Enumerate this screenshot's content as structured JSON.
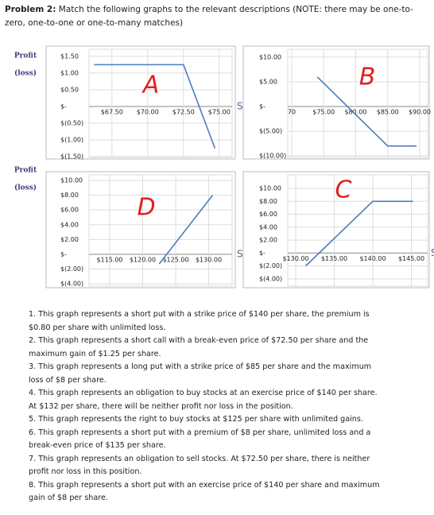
{
  "heading": {
    "label": "Problem 2:",
    "text": "Match the following graphs to the relevant descriptions (NOTE: there may be one-to-zero, one-to-one or one-to-many matches)"
  },
  "charts": [
    {
      "letter": "A",
      "y_label": [
        "Profit",
        "(loss)"
      ],
      "x_label": "S",
      "xlim": [
        65.9,
        75.9
      ],
      "ylim": [
        -1.52,
        1.71
      ],
      "xticks": [
        {
          "value": 67.5,
          "label": "$67.50"
        },
        {
          "value": 70,
          "label": "$70.00"
        },
        {
          "value": 72.5,
          "label": "$72.50"
        },
        {
          "value": 75,
          "label": "$75.00"
        }
      ],
      "yticks": [
        {
          "value": 1.5,
          "label": "$1.50"
        },
        {
          "value": 1,
          "label": "$1.00"
        },
        {
          "value": 0.5,
          "label": "$0.50"
        },
        {
          "value": 0,
          "label": "$-"
        },
        {
          "value": -0.5,
          "label": "$(0.50)"
        },
        {
          "value": -1,
          "label": "$(1.00)"
        },
        {
          "value": -1.5,
          "label": "$(1.50)"
        }
      ],
      "line": {
        "x": [
          66.25,
          72.5,
          74.7
        ],
        "y": [
          1.25,
          1.25,
          -1.25
        ]
      }
    },
    {
      "letter": "B",
      "xlim": [
        69.38,
        91.24
      ],
      "ylim": [
        -10.3,
        11.6
      ],
      "xticks": [
        70,
        {
          "value": 75,
          "label": "$75.00"
        },
        {
          "value": 80,
          "label": "$80.00"
        },
        {
          "value": 85,
          "label": "$85.00"
        },
        {
          "value": 90,
          "label": "$90.00"
        }
      ],
      "yticks": [
        {
          "value": 10,
          "label": "$10.00"
        },
        {
          "value": 5,
          "label": "$5.00"
        },
        {
          "value": 0,
          "label": "$-"
        },
        {
          "value": -5,
          "label": "$(5.00)"
        },
        {
          "value": -10,
          "label": "$(10.00)"
        }
      ],
      "line": {
        "x": [
          74,
          85,
          89.5
        ],
        "y": [
          6,
          -8,
          -8
        ]
      }
    },
    {
      "letter": "D",
      "y_label": [
        "Profit",
        "(loss)"
      ],
      "x_label": "S",
      "xlim": [
        111.87,
        133.55
      ],
      "ylim": [
        -4.3,
        10.75
      ],
      "xticks": [
        {
          "value": 115,
          "label": "$115.00"
        },
        {
          "value": 120,
          "label": "$120.00"
        },
        {
          "value": 125,
          "label": "$125.00"
        },
        {
          "value": 130,
          "label": "$130.00"
        }
      ],
      "yticks": [
        {
          "value": 10,
          "label": "$10.00"
        },
        {
          "value": 8,
          "label": "$8.00"
        },
        {
          "value": 6,
          "label": "$6.00"
        },
        {
          "value": 4,
          "label": "$4.00"
        },
        {
          "value": 2,
          "label": "$2.00"
        },
        {
          "value": 0,
          "label": "$-"
        },
        {
          "value": -2,
          "label": "$(2.00)"
        },
        {
          "value": -4,
          "label": "$(4.00)"
        }
      ],
      "line": {
        "x": [
          122.5,
          130.6
        ],
        "y": [
          -1.3,
          8
        ]
      }
    },
    {
      "letter": "C",
      "x_label": "S",
      "xlim": [
        128.97,
        147.11
      ],
      "ylim": [
        -5.12,
        12.09
      ],
      "xticks": [
        {
          "value": 130,
          "label": "$130.00"
        },
        {
          "value": 135,
          "label": "$135.00"
        },
        {
          "value": 140,
          "label": "$140.00"
        },
        {
          "value": 145,
          "label": "$145.00"
        }
      ],
      "yticks": [
        {
          "value": 10,
          "label": "$10.00"
        },
        {
          "value": 8,
          "label": "$8.00"
        },
        {
          "value": 6,
          "label": "$6.00"
        },
        {
          "value": 4,
          "label": "$4.00"
        },
        {
          "value": 2,
          "label": "$2.00"
        },
        {
          "value": 0,
          "label": "$-"
        },
        {
          "value": -2,
          "label": "$(2.00)"
        },
        {
          "value": -4,
          "label": "$(4.00)"
        }
      ],
      "line": {
        "x": [
          131.3,
          140,
          145.2
        ],
        "y": [
          -2,
          8,
          8
        ]
      }
    }
  ],
  "statements": [
    "1. This graph represents a short put with a strike price of $140 per share, the premium is $0.80 per share with unlimited loss.",
    "2. This graph represents a short call with a break-even price of $72.50 per share and the maximum gain of $1.25 per share.",
    "3. This graph represents a long put with a strike price of $85 per share and the maximum loss of $8 per share.",
    "4. This graph represents an obligation to buy stocks at an exercise price of $140 per share. At $132 per share, there will be neither profit nor loss in the position.",
    "5. This graph represents the right to buy stocks at $125 per share with unlimited gains.",
    "6. This graph represents a short put with a premium of $8 per share, unlimited loss and a break-even price of $135 per share.",
    "7. This graph represents an obligation to sell stocks. At $72.50 per share, there is neither profit nor loss in this position.",
    "8. This graph represents a short put with an exercise price of $140 per share and maximum gain of $8 per share."
  ]
}
